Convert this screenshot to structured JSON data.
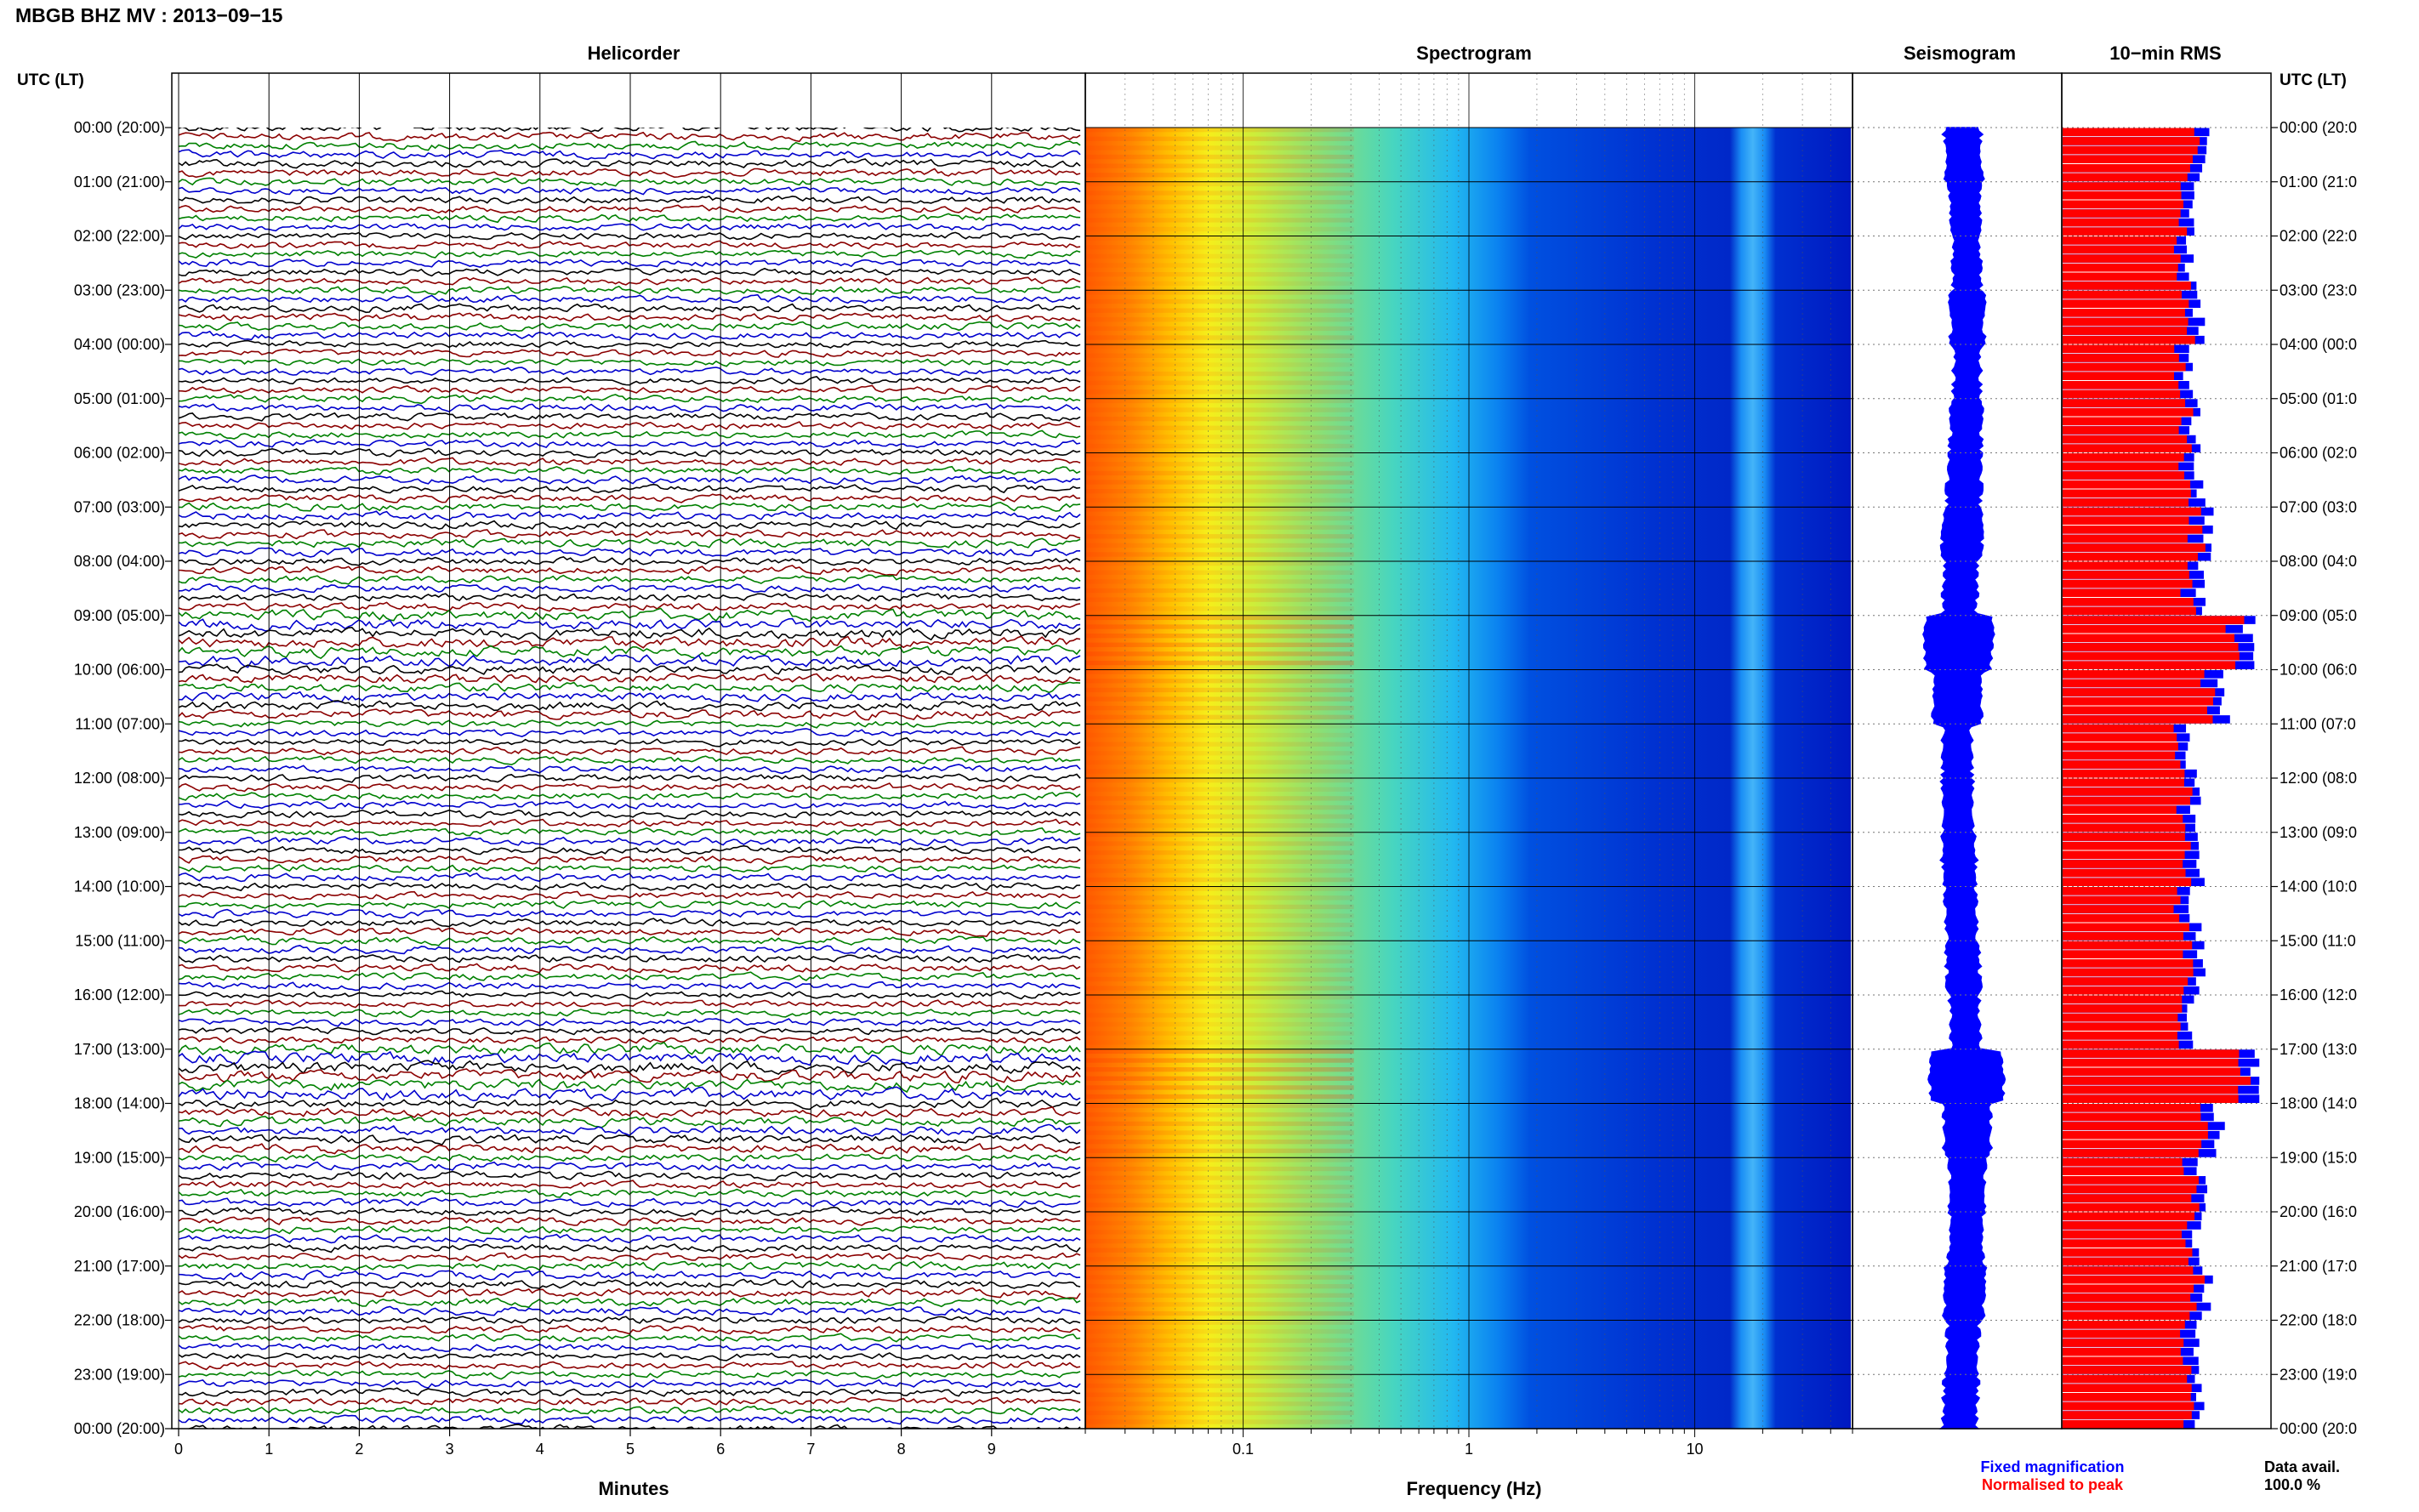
{
  "header": {
    "title": "MBGB BHZ MV : 2013−09−15",
    "left_axis_label": "UTC (LT)",
    "right_axis_label": "UTC (LT)"
  },
  "panels": {
    "helicorder": "Helicorder",
    "spectrogram": "Spectrogram",
    "seismogram": "Seismogram",
    "rms": "10−min RMS"
  },
  "time_labels": [
    "00:00 (20:00)",
    "01:00 (21:00)",
    "02:00 (22:00)",
    "03:00 (23:00)",
    "04:00 (00:00)",
    "05:00 (01:00)",
    "06:00 (02:00)",
    "07:00 (03:00)",
    "08:00 (04:00)",
    "09:00 (05:00)",
    "10:00 (06:00)",
    "11:00 (07:00)",
    "12:00 (08:00)",
    "13:00 (09:00)",
    "14:00 (10:00)",
    "15:00 (11:00)",
    "16:00 (12:00)",
    "17:00 (13:00)",
    "18:00 (14:00)",
    "19:00 (15:00)",
    "20:00 (16:00)",
    "21:00 (17:00)",
    "22:00 (18:00)",
    "23:00 (19:00)",
    "00:00 (20:00)"
  ],
  "right_time_labels": [
    "00:00 (20:0",
    "01:00 (21:0",
    "02:00 (22:0",
    "03:00 (23:0",
    "04:00 (00:0",
    "05:00 (01:0",
    "06:00 (02:0",
    "07:00 (03:0",
    "08:00 (04:0",
    "09:00 (05:0",
    "10:00 (06:0",
    "11:00 (07:0",
    "12:00 (08:0",
    "13:00 (09:0",
    "14:00 (10:0",
    "15:00 (11:0",
    "16:00 (12:0",
    "17:00 (13:0",
    "18:00 (14:0",
    "19:00 (15:0",
    "20:00 (16:0",
    "21:00 (17:0",
    "22:00 (18:0",
    "23:00 (19:0",
    "00:00 (20:0"
  ],
  "chart_data": [
    {
      "type": "line",
      "name": "Helicorder",
      "xlabel": "Minutes",
      "xlim": [
        0,
        10
      ],
      "x_ticks": [
        "0",
        "1",
        "2",
        "3",
        "4",
        "5",
        "6",
        "7",
        "8",
        "9"
      ],
      "rows": 144,
      "trace_colors": [
        "#000000",
        "#8b0000",
        "#008000",
        "#0000cd"
      ]
    },
    {
      "type": "heatmap",
      "name": "Spectrogram",
      "xlabel": "Frequency (Hz)",
      "x_scale": "log",
      "xlim": [
        0.02,
        50
      ],
      "x_ticks": [
        "0.1",
        "1",
        "10"
      ],
      "colormap": [
        "#ff4000",
        "#ff9a00",
        "#ffd000",
        "#f0f020",
        "#a0e050",
        "#40d0c0",
        "#00a0ff",
        "#0040e0",
        "#0010c0"
      ]
    },
    {
      "type": "line",
      "name": "Seismogram",
      "series_color": "#0000ff"
    },
    {
      "type": "bar",
      "name": "10-min RMS",
      "legend": [
        {
          "label": "Fixed magnification",
          "color": "#0000ff"
        },
        {
          "label": "Normalised to peak",
          "color": "#ff0000"
        }
      ],
      "hour_rms": [
        0.72,
        0.68,
        0.66,
        0.7,
        0.65,
        0.68,
        0.7,
        0.74,
        0.7,
        0.95,
        0.82,
        0.66,
        0.68,
        0.7,
        0.68,
        0.7,
        0.66,
        1.0,
        0.8,
        0.72,
        0.7,
        0.74,
        0.68,
        0.7
      ],
      "data_avail_label": "Data avail.",
      "data_avail_value": "100.0 %"
    }
  ]
}
